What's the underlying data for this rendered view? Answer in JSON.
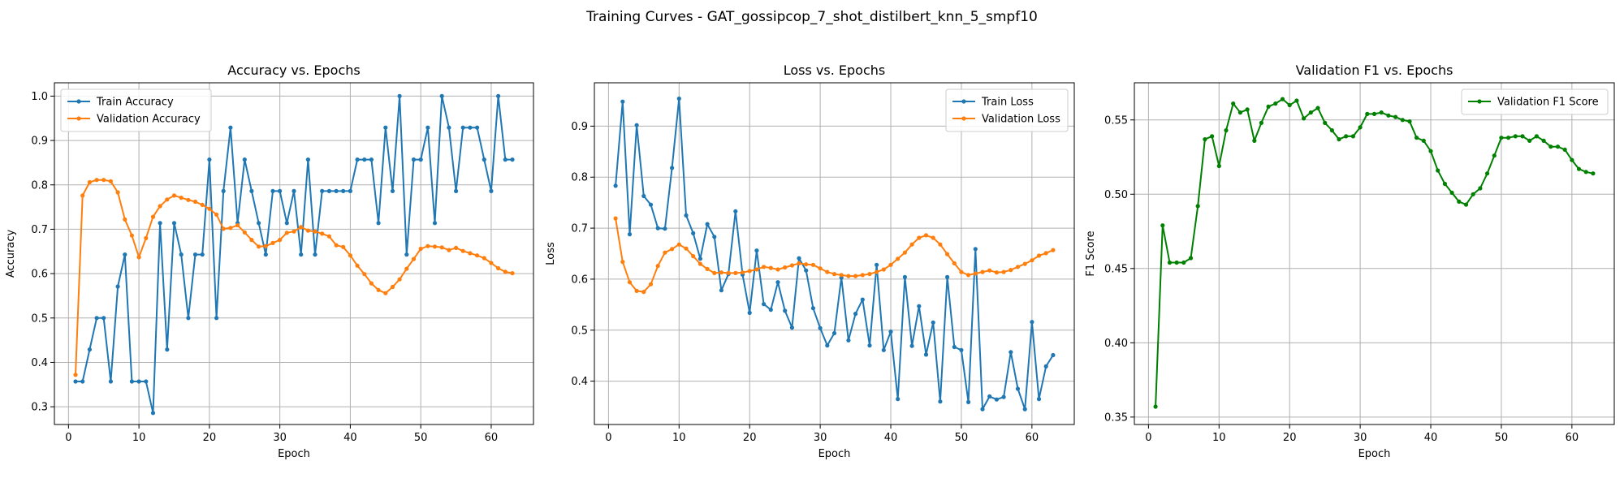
{
  "figure": {
    "suptitle": "Training Curves - GAT_gossipcop_7_shot_distilbert_knn_5_smpf10"
  },
  "colors": {
    "blue": "#1f77b4",
    "orange": "#ff7f0e",
    "green": "#008000",
    "grid": "#b0b0b0"
  },
  "chart_data": [
    {
      "type": "line",
      "title": "Accuracy vs. Epochs",
      "xlabel": "Epoch",
      "ylabel": "Accuracy",
      "xlim": [
        -2,
        66
      ],
      "ylim": [
        0.26,
        1.03
      ],
      "xticks": [
        0,
        10,
        20,
        30,
        40,
        50,
        60
      ],
      "yticks": [
        0.3,
        0.4,
        0.5,
        0.6,
        0.7,
        0.8,
        0.9,
        1.0
      ],
      "ytick_labels": [
        "0.3",
        "0.4",
        "0.5",
        "0.6",
        "0.7",
        "0.8",
        "0.9",
        "1.0"
      ],
      "grid": true,
      "legend": "upper-left",
      "x": [
        1,
        2,
        3,
        4,
        5,
        6,
        7,
        8,
        9,
        10,
        11,
        12,
        13,
        14,
        15,
        16,
        17,
        18,
        19,
        20,
        21,
        22,
        23,
        24,
        25,
        26,
        27,
        28,
        29,
        30,
        31,
        32,
        33,
        34,
        35,
        36,
        37,
        38,
        39,
        40,
        41,
        42,
        43,
        44,
        45,
        46,
        47,
        48,
        49,
        50,
        51,
        52,
        53,
        54,
        55,
        56,
        57,
        58,
        59,
        60,
        61,
        62,
        63
      ],
      "series": [
        {
          "name": "Train Accuracy",
          "color": "#1f77b4",
          "values": [
            0.357,
            0.357,
            0.429,
            0.5,
            0.5,
            0.357,
            0.571,
            0.643,
            0.357,
            0.357,
            0.357,
            0.286,
            0.714,
            0.429,
            0.714,
            0.643,
            0.5,
            0.643,
            0.643,
            0.857,
            0.5,
            0.786,
            0.929,
            0.714,
            0.857,
            0.786,
            0.714,
            0.643,
            0.786,
            0.786,
            0.714,
            0.786,
            0.643,
            0.857,
            0.643,
            0.786,
            0.786,
            0.786,
            0.786,
            0.786,
            0.857,
            0.857,
            0.857,
            0.714,
            0.929,
            0.786,
            1.0,
            0.643,
            0.857,
            0.857,
            0.929,
            0.714,
            1.0,
            0.929,
            0.786,
            0.929,
            0.929,
            0.929,
            0.857,
            0.786,
            1.0,
            0.857,
            0.857
          ]
        },
        {
          "name": "Validation Accuracy",
          "color": "#ff7f0e",
          "values": [
            0.372,
            0.776,
            0.806,
            0.811,
            0.811,
            0.808,
            0.783,
            0.722,
            0.686,
            0.637,
            0.68,
            0.728,
            0.752,
            0.767,
            0.776,
            0.771,
            0.766,
            0.762,
            0.755,
            0.746,
            0.733,
            0.701,
            0.703,
            0.709,
            0.693,
            0.676,
            0.661,
            0.662,
            0.669,
            0.676,
            0.692,
            0.695,
            0.705,
            0.697,
            0.695,
            0.69,
            0.684,
            0.664,
            0.66,
            0.641,
            0.618,
            0.599,
            0.578,
            0.563,
            0.556,
            0.57,
            0.587,
            0.611,
            0.633,
            0.656,
            0.662,
            0.661,
            0.659,
            0.653,
            0.658,
            0.651,
            0.646,
            0.641,
            0.635,
            0.624,
            0.612,
            0.604,
            0.601
          ]
        }
      ]
    },
    {
      "type": "line",
      "title": "Loss vs. Epochs",
      "xlabel": "Epoch",
      "ylabel": "Loss",
      "xlim": [
        -2,
        66
      ],
      "ylim": [
        0.315,
        0.985
      ],
      "xticks": [
        0,
        10,
        20,
        30,
        40,
        50,
        60
      ],
      "yticks": [
        0.4,
        0.5,
        0.6,
        0.7,
        0.8,
        0.9
      ],
      "ytick_labels": [
        "0.4",
        "0.5",
        "0.6",
        "0.7",
        "0.8",
        "0.9"
      ],
      "grid": true,
      "legend": "upper-right",
      "x": [
        1,
        2,
        3,
        4,
        5,
        6,
        7,
        8,
        9,
        10,
        11,
        12,
        13,
        14,
        15,
        16,
        17,
        18,
        19,
        20,
        21,
        22,
        23,
        24,
        25,
        26,
        27,
        28,
        29,
        30,
        31,
        32,
        33,
        34,
        35,
        36,
        37,
        38,
        39,
        40,
        41,
        42,
        43,
        44,
        45,
        46,
        47,
        48,
        49,
        50,
        51,
        52,
        53,
        54,
        55,
        56,
        57,
        58,
        59,
        60,
        61,
        62,
        63
      ],
      "series": [
        {
          "name": "Train Loss",
          "color": "#1f77b4",
          "values": [
            0.783,
            0.948,
            0.688,
            0.902,
            0.763,
            0.746,
            0.7,
            0.699,
            0.818,
            0.954,
            0.725,
            0.69,
            0.64,
            0.708,
            0.683,
            0.578,
            0.61,
            0.733,
            0.609,
            0.534,
            0.656,
            0.551,
            0.54,
            0.594,
            0.538,
            0.505,
            0.641,
            0.617,
            0.543,
            0.504,
            0.47,
            0.494,
            0.603,
            0.48,
            0.532,
            0.56,
            0.47,
            0.628,
            0.461,
            0.497,
            0.365,
            0.604,
            0.469,
            0.547,
            0.452,
            0.515,
            0.36,
            0.604,
            0.467,
            0.461,
            0.359,
            0.659,
            0.345,
            0.37,
            0.364,
            0.369,
            0.457,
            0.385,
            0.345,
            0.516,
            0.365,
            0.429,
            0.451
          ]
        },
        {
          "name": "Validation Loss",
          "color": "#ff7f0e",
          "values": [
            0.719,
            0.634,
            0.594,
            0.577,
            0.575,
            0.59,
            0.626,
            0.652,
            0.659,
            0.668,
            0.66,
            0.645,
            0.63,
            0.62,
            0.612,
            0.613,
            0.612,
            0.612,
            0.613,
            0.616,
            0.619,
            0.624,
            0.622,
            0.619,
            0.623,
            0.627,
            0.631,
            0.629,
            0.628,
            0.621,
            0.614,
            0.61,
            0.608,
            0.606,
            0.606,
            0.608,
            0.61,
            0.614,
            0.619,
            0.628,
            0.64,
            0.652,
            0.668,
            0.681,
            0.686,
            0.681,
            0.668,
            0.649,
            0.631,
            0.614,
            0.608,
            0.611,
            0.614,
            0.617,
            0.613,
            0.614,
            0.618,
            0.624,
            0.63,
            0.637,
            0.646,
            0.651,
            0.657
          ]
        }
      ]
    },
    {
      "type": "line",
      "title": "Validation F1 vs. Epochs",
      "xlabel": "Epoch",
      "ylabel": "F1 Score",
      "xlim": [
        -2,
        66
      ],
      "ylim": [
        0.345,
        0.575
      ],
      "xticks": [
        0,
        10,
        20,
        30,
        40,
        50,
        60
      ],
      "yticks": [
        0.35,
        0.4,
        0.45,
        0.5,
        0.55
      ],
      "ytick_labels": [
        "0.35",
        "0.40",
        "0.45",
        "0.50",
        "0.55"
      ],
      "grid": true,
      "legend": "upper-right",
      "x": [
        1,
        2,
        3,
        4,
        5,
        6,
        7,
        8,
        9,
        10,
        11,
        12,
        13,
        14,
        15,
        16,
        17,
        18,
        19,
        20,
        21,
        22,
        23,
        24,
        25,
        26,
        27,
        28,
        29,
        30,
        31,
        32,
        33,
        34,
        35,
        36,
        37,
        38,
        39,
        40,
        41,
        42,
        43,
        44,
        45,
        46,
        47,
        48,
        49,
        50,
        51,
        52,
        53,
        54,
        55,
        56,
        57,
        58,
        59,
        60,
        61,
        62,
        63
      ],
      "series": [
        {
          "name": "Validation F1 Score",
          "color": "#008000",
          "values": [
            0.357,
            0.479,
            0.454,
            0.454,
            0.454,
            0.457,
            0.492,
            0.537,
            0.539,
            0.519,
            0.543,
            0.561,
            0.555,
            0.557,
            0.536,
            0.548,
            0.559,
            0.561,
            0.564,
            0.56,
            0.563,
            0.551,
            0.555,
            0.558,
            0.548,
            0.543,
            0.537,
            0.539,
            0.539,
            0.545,
            0.554,
            0.554,
            0.555,
            0.553,
            0.552,
            0.55,
            0.549,
            0.538,
            0.536,
            0.529,
            0.516,
            0.507,
            0.501,
            0.495,
            0.493,
            0.5,
            0.504,
            0.514,
            0.526,
            0.538,
            0.538,
            0.539,
            0.539,
            0.536,
            0.539,
            0.536,
            0.532,
            0.532,
            0.53,
            0.523,
            0.517,
            0.515,
            0.514
          ]
        }
      ]
    }
  ]
}
